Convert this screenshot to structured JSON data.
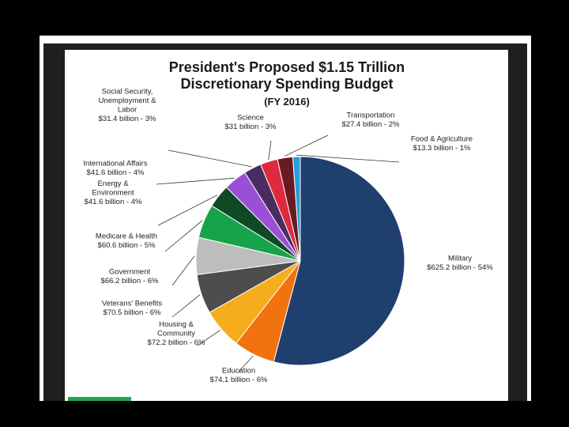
{
  "chart_data": {
    "type": "pie",
    "title_lines": [
      "President's Proposed $1.15 Trillion",
      "Discretionary Spending Budget",
      "(FY 2016)"
    ],
    "slices": [
      {
        "category": "Military",
        "value": 625.2,
        "percent": 54,
        "color": "#1f3f6e",
        "label_lines": [
          "Military",
          "$625.2 billion - 54%"
        ]
      },
      {
        "category": "Education",
        "value": 74.1,
        "percent": 6,
        "color": "#f07310",
        "label_lines": [
          "Education",
          "$74.1 billion - 6%"
        ]
      },
      {
        "category": "Housing & Community",
        "value": 72.2,
        "percent": 6,
        "color": "#f5ad1b",
        "label_lines": [
          "Housing &",
          "Community",
          "$72.2 billion - 6%"
        ]
      },
      {
        "category": "Veterans' Benefits",
        "value": 70.5,
        "percent": 6,
        "color": "#4d4d4d",
        "label_lines": [
          "Veterans' Benefits",
          "$70.5 billion - 6%"
        ]
      },
      {
        "category": "Government",
        "value": 66.2,
        "percent": 6,
        "color": "#bdbdbd",
        "label_lines": [
          "Government",
          "$66.2 billion - 6%"
        ]
      },
      {
        "category": "Medicare & Health",
        "value": 60.6,
        "percent": 5,
        "color": "#17a34a",
        "label_lines": [
          "Medicare & Health",
          "$60.6 billion - 5%"
        ]
      },
      {
        "category": "Energy & Environment",
        "value": 41.6,
        "percent": 4,
        "color": "#0e4a26",
        "label_lines": [
          "Energy &",
          "Environment",
          "$41.6 billion - 4%"
        ]
      },
      {
        "category": "International Affairs",
        "value": 41.6,
        "percent": 4,
        "color": "#9b4fd6",
        "label_lines": [
          "International Affairs",
          "$41.6 billion - 4%"
        ]
      },
      {
        "category": "Social Security, Unemployment & Labor",
        "value": 31.4,
        "percent": 3,
        "color": "#4a2c63",
        "label_lines": [
          "Social Security,",
          "Unemployment &",
          "Labor",
          "$31.4 billion - 3%"
        ]
      },
      {
        "category": "Science",
        "value": 31,
        "percent": 3,
        "color": "#de2a3f",
        "label_lines": [
          "Science",
          "$31 billion - 3%"
        ]
      },
      {
        "category": "Transportation",
        "value": 27.4,
        "percent": 2,
        "color": "#6b1a22",
        "label_lines": [
          "Transportation",
          "$27.4 billion - 2%"
        ]
      },
      {
        "category": "Food & Agriculture",
        "value": 13.3,
        "percent": 1,
        "color": "#2a9ed8",
        "label_lines": [
          "Food & Agriculture",
          "$13.3 billion - 1%"
        ]
      }
    ]
  }
}
